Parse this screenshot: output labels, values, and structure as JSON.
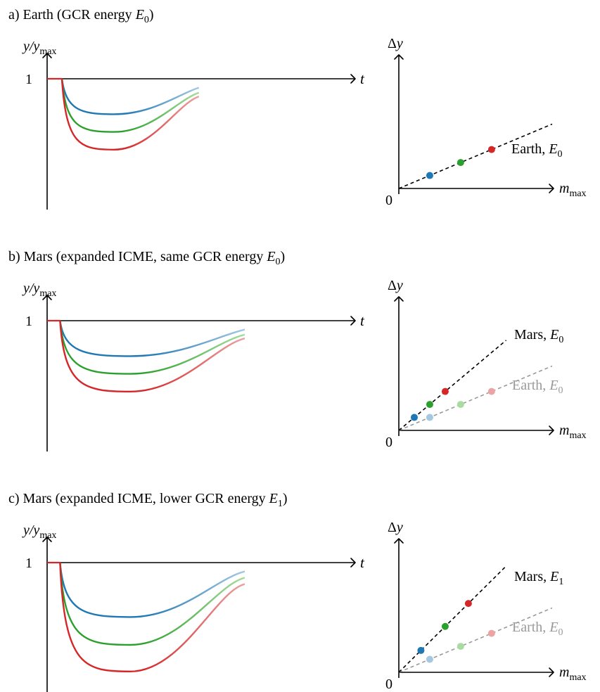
{
  "panels": [
    {
      "caption": "a) Earth (GCR energy ",
      "caption_sym": "E",
      "caption_sub": "0",
      "caption_tail": ")",
      "left": {
        "ylabel": "y/y",
        "ylabel_sub": "max",
        "one": "1",
        "xlabel": "t",
        "start_delay": 0.08,
        "minima": [
          0.72,
          0.58,
          0.44
        ],
        "ends": [
          0.93,
          0.89,
          0.86
        ],
        "width": 0.5
      },
      "right": {
        "ylabel": "Δy",
        "xlabel": "m",
        "xlabel_sub": "max",
        "origin": "0",
        "lines": [
          {
            "slope": 0.42,
            "color": "#000000",
            "dash": true,
            "label": "Earth, ",
            "label_sym": "E",
            "label_sub": "0",
            "label_color": "#000000",
            "points": [
              0.28,
              0.56,
              0.84
            ],
            "faded": false
          }
        ]
      }
    },
    {
      "caption": "b) Mars (expanded ICME, same GCR energy ",
      "caption_sym": "E",
      "caption_sub": "0",
      "caption_tail": ")",
      "left": {
        "ylabel": "y/y",
        "ylabel_sub": "max",
        "one": "1",
        "xlabel": "t",
        "start_delay": 0.07,
        "minima": [
          0.72,
          0.58,
          0.44
        ],
        "ends": [
          0.93,
          0.89,
          0.86
        ],
        "width": 0.74
      },
      "right": {
        "ylabel": "Δy",
        "xlabel": "m",
        "xlabel_sub": "max",
        "origin": "0",
        "lines": [
          {
            "slope": 0.42,
            "color": "#999999",
            "dash": true,
            "label": "Earth, ",
            "label_sym": "E",
            "label_sub": "0",
            "label_color": "#999999",
            "points": [
              0.28,
              0.56,
              0.84
            ],
            "faded": true
          },
          {
            "slope": 0.84,
            "color": "#000000",
            "dash": true,
            "label": "Mars, ",
            "label_sym": "E",
            "label_sub": "0",
            "label_color": "#000000",
            "points": [
              0.14,
              0.28,
              0.42
            ],
            "faded": false
          }
        ]
      }
    },
    {
      "caption": "c) Mars (expanded ICME, lower GCR energy ",
      "caption_sym": "E",
      "caption_sub": "1",
      "caption_tail": ")",
      "left": {
        "ylabel": "y/y",
        "ylabel_sub": "max",
        "one": "1",
        "xlabel": "t",
        "start_delay": 0.07,
        "minima": [
          0.57,
          0.35,
          0.14
        ],
        "ends": [
          0.93,
          0.88,
          0.83
        ],
        "width": 0.74
      },
      "right": {
        "ylabel": "Δy",
        "xlabel": "m",
        "xlabel_sub": "max",
        "origin": "0",
        "lines": [
          {
            "slope": 0.42,
            "color": "#999999",
            "dash": true,
            "label": "Earth, ",
            "label_sym": "E",
            "label_sub": "0",
            "label_color": "#999999",
            "points": [
              0.28,
              0.56,
              0.84
            ],
            "faded": true
          },
          {
            "slope": 0.99,
            "color": "#000000",
            "dash": true,
            "label": "Mars, ",
            "label_sym": "E",
            "label_sub": "1",
            "label_color": "#000000",
            "points": [
              0.2,
              0.42,
              0.63
            ],
            "faded": false
          }
        ]
      }
    }
  ],
  "colors": {
    "blue": "#1f77b4",
    "green": "#2ca02c",
    "red": "#d62728",
    "blue_light": "#a5c8e1",
    "green_light": "#a8dca0",
    "red_light": "#eba3a3",
    "flat": "#d62728"
  }
}
